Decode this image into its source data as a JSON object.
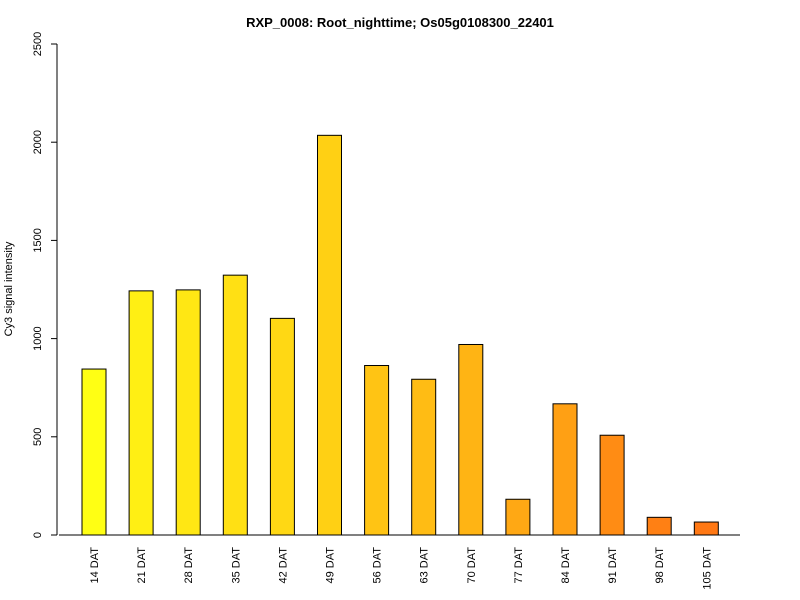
{
  "chart_data": {
    "type": "bar",
    "title": "RXP_0008: Root_nighttime; Os05g0108300_22401",
    "xlabel": "",
    "ylabel": "Cy3  signal intensity",
    "ylim": [
      0,
      2500
    ],
    "yticks": [
      0,
      500,
      1000,
      1500,
      2000,
      2500
    ],
    "grid": false,
    "categories": [
      "14 DAT",
      "21 DAT",
      "28 DAT",
      "35 DAT",
      "42 DAT",
      "49 DAT",
      "56 DAT",
      "63 DAT",
      "70 DAT",
      "77 DAT",
      "84 DAT",
      "91 DAT",
      "98 DAT",
      "105 DAT"
    ],
    "values": [
      845,
      1243,
      1248,
      1323,
      1103,
      2035,
      863,
      793,
      970,
      182,
      668,
      508,
      90,
      66
    ],
    "colors": [
      "#FFFF14",
      "#FFEF14",
      "#FFE714",
      "#FFE014",
      "#FFD814",
      "#FFD014",
      "#FFC414",
      "#FFBC14",
      "#FFB414",
      "#FFA814",
      "#FFA014",
      "#FF8C14",
      "#FF8014",
      "#FF7814"
    ]
  }
}
